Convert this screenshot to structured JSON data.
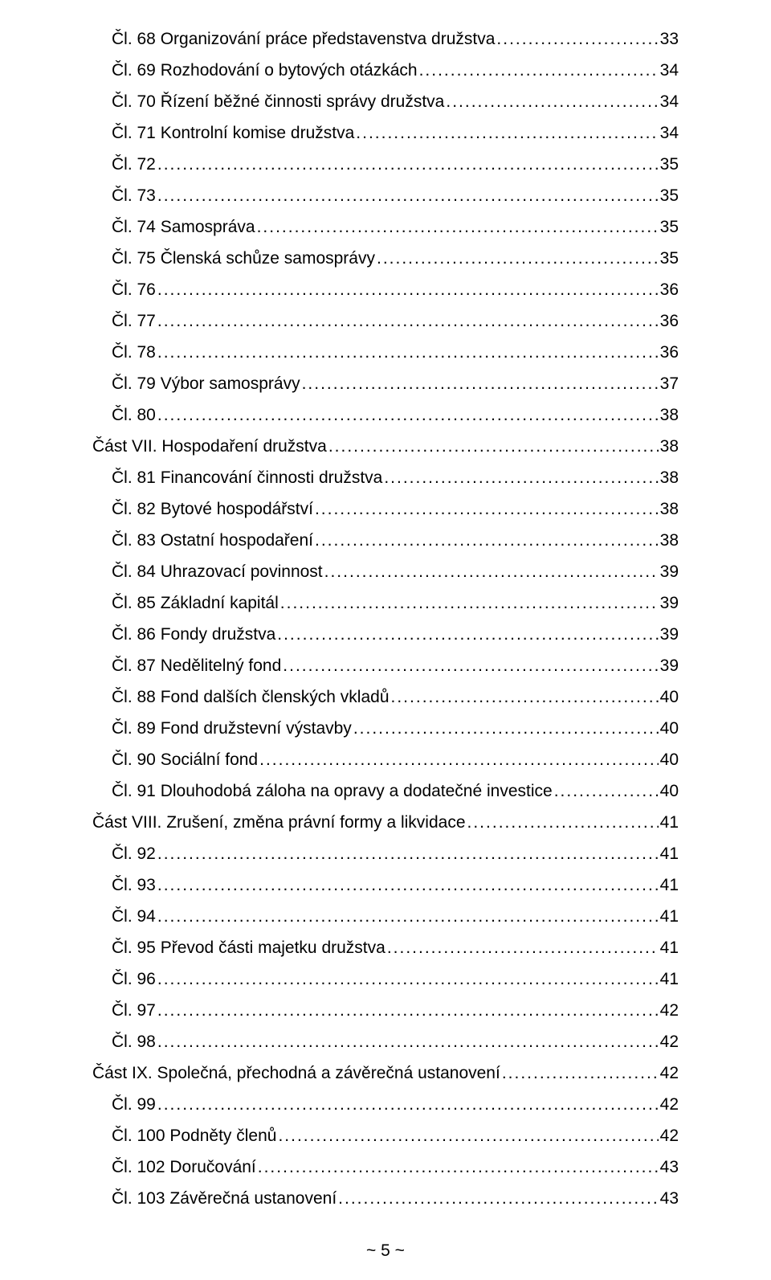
{
  "toc": {
    "dot_fill": "................................................................................................................................................................................................................",
    "entries": [
      {
        "label": "Čl. 68 Organizování práce představenstva družstva",
        "page": "33",
        "indent": 1
      },
      {
        "label": "Čl. 69 Rozhodování o bytových otázkách",
        "page": "34",
        "indent": 1
      },
      {
        "label": "Čl. 70 Řízení běžné činnosti správy družstva",
        "page": "34",
        "indent": 1
      },
      {
        "label": "Čl. 71 Kontrolní komise družstva",
        "page": "34",
        "indent": 1
      },
      {
        "label": "Čl. 72",
        "page": "35",
        "indent": 1
      },
      {
        "label": "Čl. 73",
        "page": "35",
        "indent": 1
      },
      {
        "label": "Čl. 74 Samospráva",
        "page": "35",
        "indent": 1
      },
      {
        "label": "Čl. 75 Členská schůze samosprávy",
        "page": "35",
        "indent": 1
      },
      {
        "label": "Čl. 76",
        "page": "36",
        "indent": 1
      },
      {
        "label": "Čl. 77",
        "page": "36",
        "indent": 1
      },
      {
        "label": "Čl. 78",
        "page": "36",
        "indent": 1
      },
      {
        "label": "Čl. 79 Výbor samosprávy",
        "page": "37",
        "indent": 1
      },
      {
        "label": "Čl. 80",
        "page": "38",
        "indent": 1
      },
      {
        "label": "Část VII. Hospodaření družstva",
        "page": "38",
        "indent": 0
      },
      {
        "label": "Čl. 81 Financování činnosti družstva",
        "page": "38",
        "indent": 1
      },
      {
        "label": "Čl. 82 Bytové hospodářství",
        "page": "38",
        "indent": 1
      },
      {
        "label": "Čl. 83 Ostatní hospodaření",
        "page": "38",
        "indent": 1
      },
      {
        "label": "Čl. 84 Uhrazovací povinnost",
        "page": "39",
        "indent": 1
      },
      {
        "label": "Čl. 85 Základní kapitál",
        "page": "39",
        "indent": 1
      },
      {
        "label": "Čl. 86 Fondy družstva",
        "page": "39",
        "indent": 1
      },
      {
        "label": "Čl. 87 Nedělitelný fond",
        "page": "39",
        "indent": 1
      },
      {
        "label": "Čl. 88 Fond dalších členských vkladů",
        "page": "40",
        "indent": 1
      },
      {
        "label": "Čl. 89 Fond družstevní výstavby",
        "page": "40",
        "indent": 1
      },
      {
        "label": "Čl. 90 Sociální fond",
        "page": "40",
        "indent": 1
      },
      {
        "label": "Čl. 91 Dlouhodobá záloha na opravy a dodatečné investice",
        "page": "40",
        "indent": 1
      },
      {
        "label": "Část VIII. Zrušení, změna právní formy a likvidace",
        "page": "41",
        "indent": 0
      },
      {
        "label": "Čl. 92",
        "page": "41",
        "indent": 1
      },
      {
        "label": "Čl. 93",
        "page": "41",
        "indent": 1
      },
      {
        "label": "Čl. 94",
        "page": "41",
        "indent": 1
      },
      {
        "label": "Čl. 95 Převod části majetku družstva",
        "page": "41",
        "indent": 1
      },
      {
        "label": "Čl. 96",
        "page": "41",
        "indent": 1
      },
      {
        "label": "Čl. 97",
        "page": "42",
        "indent": 1
      },
      {
        "label": "Čl. 98",
        "page": "42",
        "indent": 1
      },
      {
        "label": "Část IX. Společná, přechodná a závěrečná ustanovení",
        "page": "42",
        "indent": 0
      },
      {
        "label": "Čl. 99",
        "page": "42",
        "indent": 1
      },
      {
        "label": "Čl. 100 Podněty členů",
        "page": "42",
        "indent": 1
      },
      {
        "label": "Čl. 102 Doručování",
        "page": "43",
        "indent": 1
      },
      {
        "label": "Čl. 103 Závěrečná ustanovení",
        "page": "43",
        "indent": 1
      }
    ]
  },
  "footer": {
    "page_label": "~ 5 ~"
  }
}
